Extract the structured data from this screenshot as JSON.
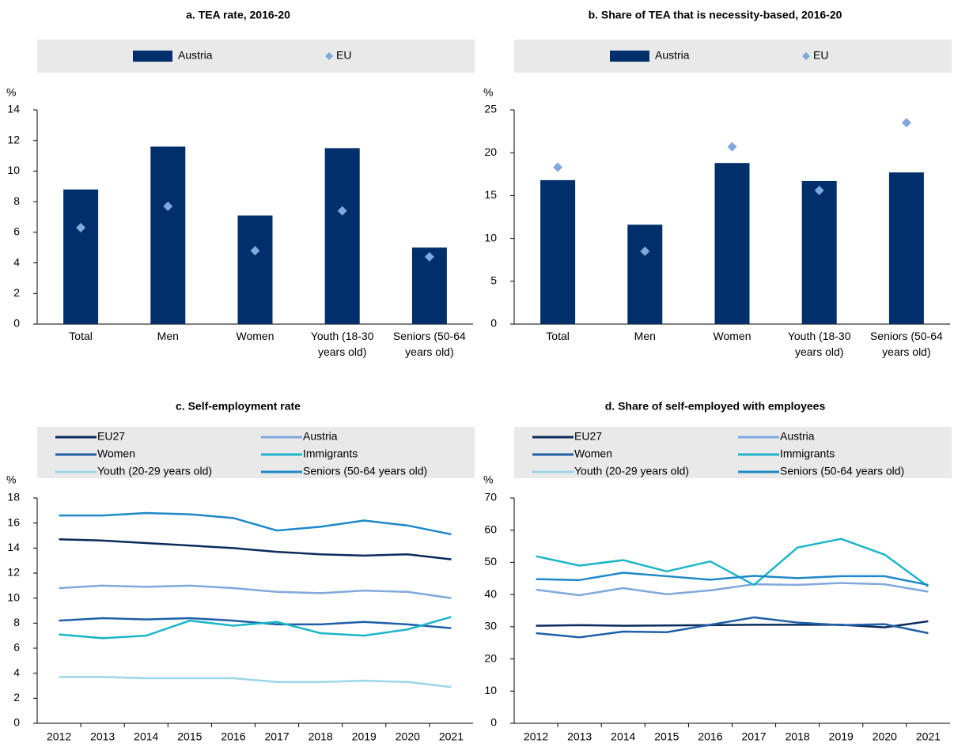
{
  "chart_data": [
    {
      "type": "bar",
      "title": "a. TEA rate,  2016-20",
      "y_label": "%",
      "categories": [
        "Total",
        "Men",
        "Women",
        "Youth (18-30 years old)",
        "Seniors (50-64 years old)"
      ],
      "series": [
        {
          "name": "Austria",
          "color": "#002f6c",
          "values": [
            8.8,
            11.6,
            7.1,
            11.5,
            5.0
          ]
        },
        {
          "name": "EU",
          "color": "#7fa8dc",
          "marker": "diamond",
          "values": [
            6.3,
            7.7,
            4.8,
            7.4,
            4.4
          ]
        }
      ],
      "ylim": [
        0,
        14
      ],
      "yticks": [
        0,
        2,
        4,
        6,
        8,
        10,
        12,
        14
      ]
    },
    {
      "type": "bar",
      "title": "b. Share of TEA that is necessity-based,  2016-20",
      "y_label": "%",
      "categories": [
        "Total",
        "Men",
        "Women",
        "Youth (18-30 years old)",
        "Seniors (50-64 years old)"
      ],
      "series": [
        {
          "name": "Austria",
          "color": "#002f6c",
          "values": [
            16.8,
            11.6,
            18.8,
            16.7,
            17.7
          ]
        },
        {
          "name": "EU",
          "color": "#7fa8dc",
          "marker": "diamond",
          "values": [
            18.3,
            8.5,
            20.7,
            15.6,
            23.5
          ]
        }
      ],
      "ylim": [
        0,
        25
      ],
      "yticks": [
        0,
        5,
        10,
        15,
        20,
        25
      ]
    },
    {
      "type": "line",
      "title": "c. Self-employment rate",
      "y_label": "%",
      "categories": [
        "2012",
        "2013",
        "2014",
        "2015",
        "2016",
        "2017",
        "2018",
        "2019",
        "2020",
        "2021"
      ],
      "series": [
        {
          "name": "EU27",
          "color": "#0b2a5c",
          "values": [
            14.7,
            14.6,
            14.4,
            14.2,
            14.0,
            13.7,
            13.5,
            13.4,
            13.5,
            13.1
          ]
        },
        {
          "name": "Austria",
          "color": "#7fa8dc",
          "values": [
            10.8,
            11.0,
            10.9,
            11.0,
            10.8,
            10.5,
            10.4,
            10.6,
            10.5,
            10.0
          ]
        },
        {
          "name": "Women",
          "color": "#1f5fa8",
          "values": [
            8.2,
            8.4,
            8.3,
            8.4,
            8.2,
            7.9,
            7.9,
            8.1,
            7.9,
            7.6
          ]
        },
        {
          "name": "Immigrants",
          "color": "#1bb5c8",
          "values": [
            7.1,
            6.8,
            7.0,
            8.2,
            7.8,
            8.1,
            7.2,
            7.0,
            7.5,
            8.5
          ]
        },
        {
          "name": "Youth (20-29 years old)",
          "color": "#9ad6e8",
          "values": [
            3.7,
            3.7,
            3.6,
            3.6,
            3.6,
            3.3,
            3.3,
            3.4,
            3.3,
            2.9
          ]
        },
        {
          "name": "Seniors (50-64 years old)",
          "color": "#1e88c8",
          "values": [
            16.6,
            16.6,
            16.8,
            16.7,
            16.4,
            15.4,
            15.7,
            16.2,
            15.8,
            15.1
          ]
        }
      ],
      "ylim": [
        0,
        18
      ],
      "yticks": [
        0,
        2,
        4,
        6,
        8,
        10,
        12,
        14,
        16,
        18
      ]
    },
    {
      "type": "line",
      "title": "d. Share of self-employed with employees",
      "y_label": "%",
      "categories": [
        "2012",
        "2013",
        "2014",
        "2015",
        "2016",
        "2017",
        "2018",
        "2019",
        "2020",
        "2021"
      ],
      "series": [
        {
          "name": "EU27",
          "color": "#0b2a5c",
          "values": [
            30.3,
            30.5,
            30.3,
            30.4,
            30.5,
            30.6,
            30.6,
            30.6,
            29.8,
            31.7
          ]
        },
        {
          "name": "Austria",
          "color": "#7fa8dc",
          "values": [
            41.5,
            39.8,
            42.0,
            40.1,
            41.3,
            43.2,
            43.0,
            43.6,
            43.2,
            40.9
          ]
        },
        {
          "name": "Women",
          "color": "#1f5fa8",
          "values": [
            28.0,
            26.7,
            28.5,
            28.3,
            30.6,
            32.9,
            31.3,
            30.5,
            30.8,
            28.0
          ]
        },
        {
          "name": "Immigrants",
          "color": "#1bb5c8",
          "values": [
            51.9,
            49.0,
            50.7,
            47.2,
            50.3,
            43.0,
            54.6,
            57.3,
            52.4,
            42.5
          ]
        },
        {
          "name": "Youth (20-29 years old)",
          "color": "#9ad6e8",
          "values": [
            null,
            null,
            null,
            null,
            null,
            null,
            null,
            null,
            null,
            null
          ]
        },
        {
          "name": "Seniors (50-64 years old)",
          "color": "#1e88c8",
          "values": [
            44.8,
            44.5,
            46.8,
            45.7,
            44.6,
            45.8,
            45.1,
            45.7,
            45.7,
            43.0
          ]
        }
      ],
      "ylim": [
        0,
        70
      ],
      "yticks": [
        0,
        10,
        20,
        30,
        40,
        50,
        60,
        70
      ]
    }
  ]
}
